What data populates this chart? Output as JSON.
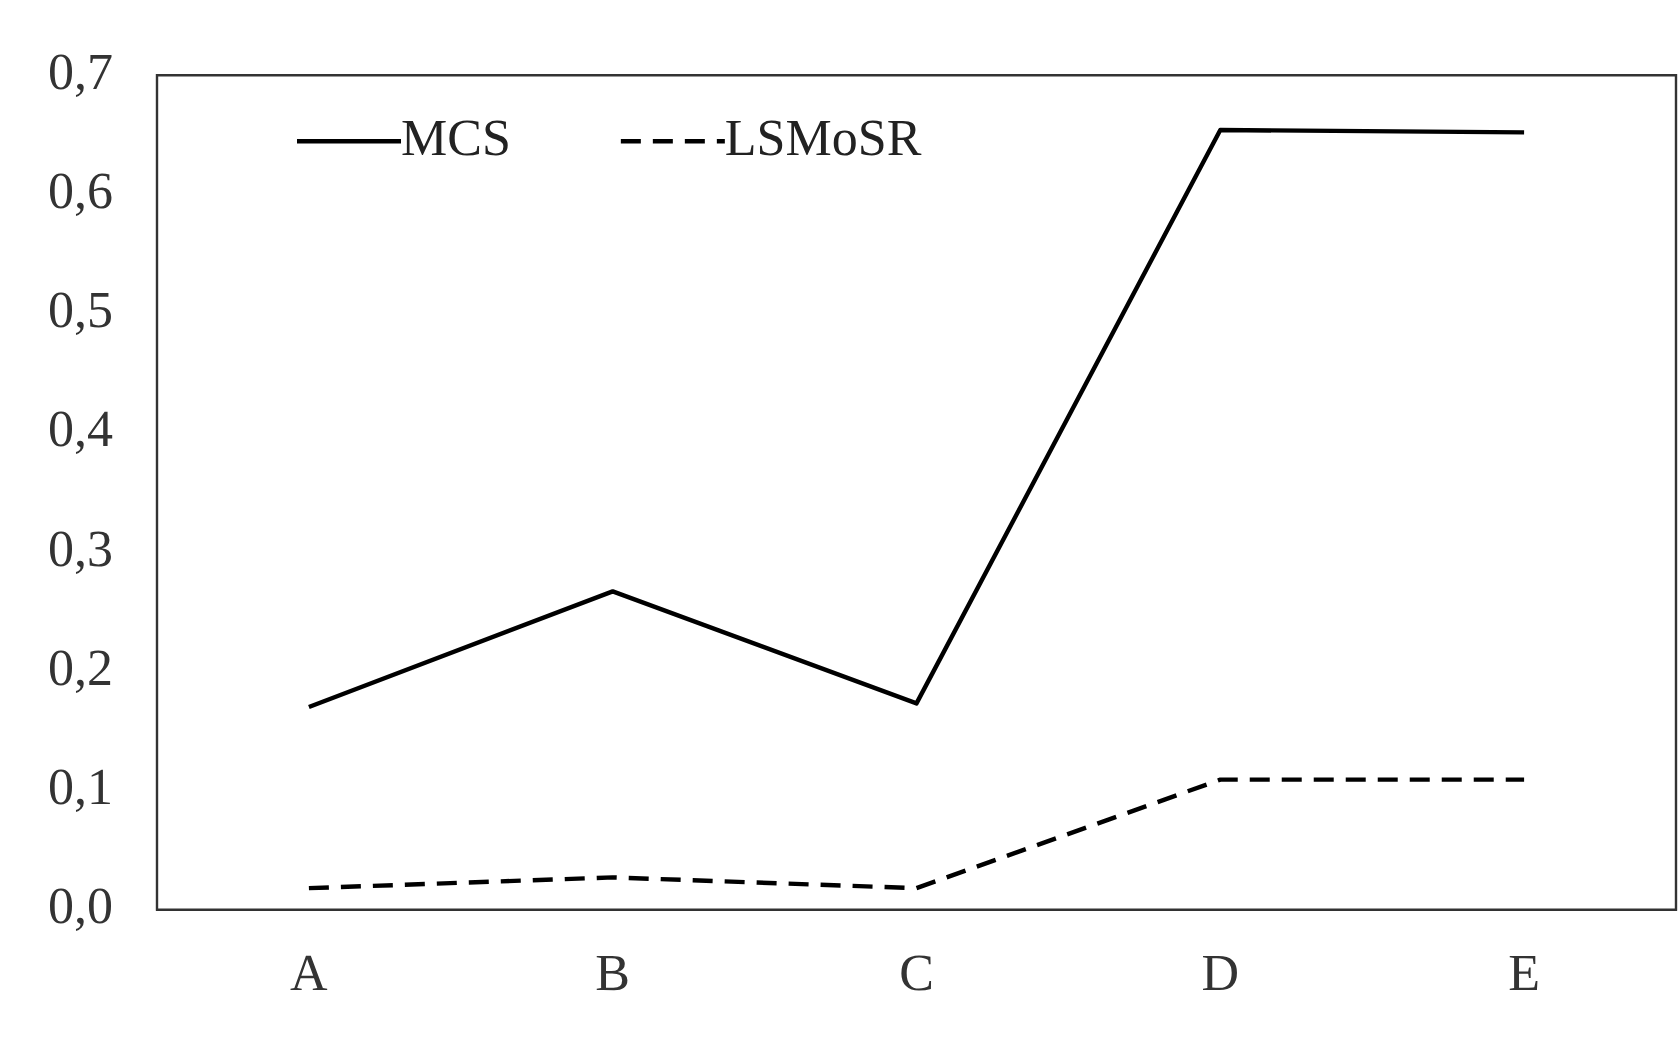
{
  "chart_data": {
    "type": "line",
    "categories": [
      "A",
      "B",
      "C",
      "D",
      "E"
    ],
    "series": [
      {
        "name": "MCS",
        "color": "#000000",
        "line_style": "solid",
        "values": [
          0.17,
          0.267,
          0.173,
          0.654,
          0.652
        ]
      },
      {
        "name": "LSMoSR",
        "color": "#000000",
        "line_style": "dashed",
        "values": [
          0.018,
          0.027,
          0.018,
          0.109,
          0.109
        ]
      }
    ],
    "ylim": [
      0,
      0.7
    ],
    "yticks": [
      {
        "value": 0,
        "label": "0,0"
      },
      {
        "value": 0.1,
        "label": "0,1"
      },
      {
        "value": 0.2,
        "label": "0,2"
      },
      {
        "value": 0.3,
        "label": "0,3"
      },
      {
        "value": 0.4,
        "label": "0,4"
      },
      {
        "value": 0.5,
        "label": "0,5"
      },
      {
        "value": 0.6,
        "label": "0,6"
      },
      {
        "value": 0.7,
        "label": "0,7"
      }
    ],
    "grid": false,
    "legend": "top left",
    "marker": "none"
  }
}
